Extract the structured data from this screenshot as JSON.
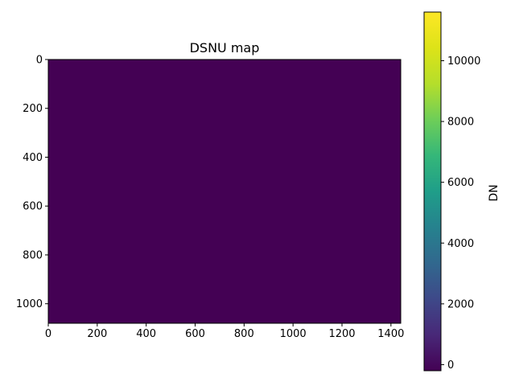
{
  "chart_data": {
    "type": "heatmap",
    "title": "DSNU map",
    "xlabel": "",
    "ylabel": "",
    "xlim": [
      0,
      1440
    ],
    "ylim": [
      1080,
      0
    ],
    "x_ticks": [
      0,
      200,
      400,
      600,
      800,
      1000,
      1200,
      1400
    ],
    "y_ticks": [
      0,
      200,
      400,
      600,
      800,
      1000
    ],
    "image_width": 1440,
    "image_height": 1080,
    "colorbar": {
      "label": "DN",
      "min": -200,
      "max": 11600,
      "ticks": [
        0,
        2000,
        4000,
        6000,
        8000,
        10000
      ],
      "colormap": "viridis"
    },
    "field_value": -100,
    "field_color": "#440154",
    "grid": false,
    "legend": "none"
  }
}
